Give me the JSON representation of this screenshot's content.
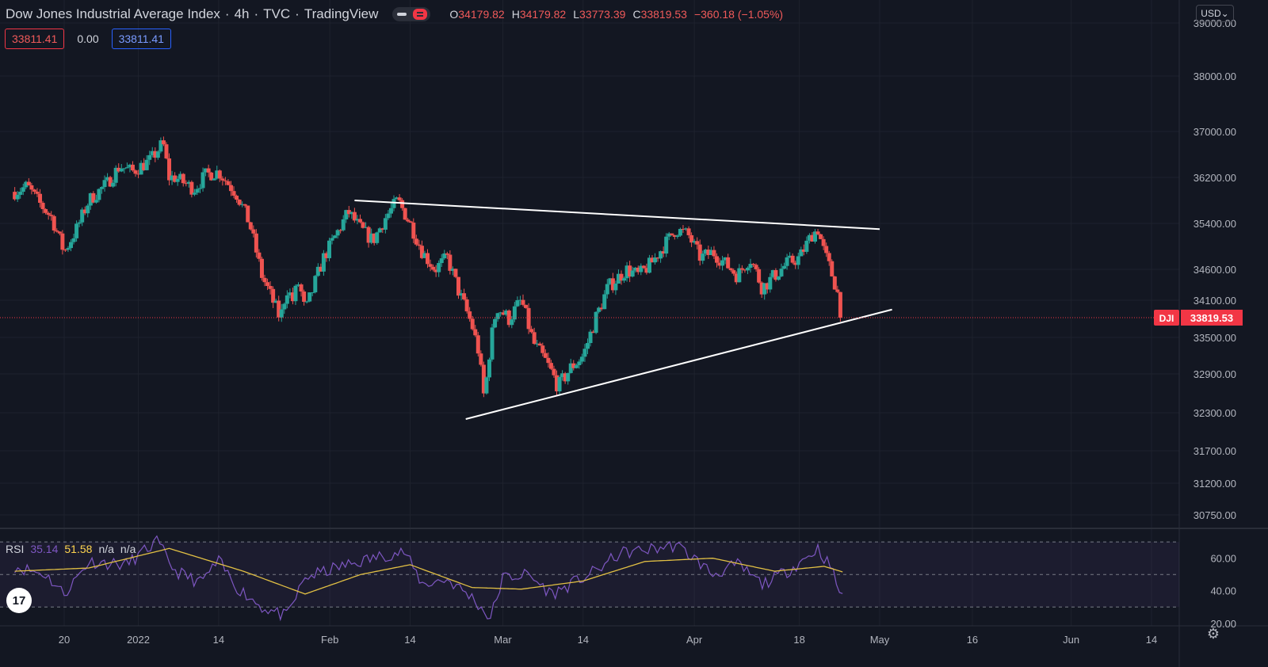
{
  "header": {
    "title": "Dow Jones Industrial Average Index",
    "interval": "4h",
    "exchange": "TVC",
    "source": "TradingView",
    "ohlc": {
      "o_label": "O",
      "o": "34179.82",
      "h_label": "H",
      "h": "34179.82",
      "l_label": "L",
      "l": "33773.39",
      "c_label": "C",
      "c": "33819.53",
      "change": "−360.18 (−1.05%)"
    }
  },
  "bid_ask": {
    "sell": "33811.41",
    "spread": "0.00",
    "buy": "33811.41"
  },
  "currency_label": "USD",
  "rsi": {
    "label": "RSI",
    "value": "35.14",
    "ma_value": "51.58",
    "na1": "n/a",
    "na2": "n/a"
  },
  "logo_text": "17",
  "colors": {
    "background": "#131722",
    "up": "#26a69a",
    "down": "#ef5350",
    "grid": "#1e222d",
    "rsi_line": "#7e57c2",
    "rsi_ma": "#e2c044",
    "trendline": "#ffffff",
    "price_tag": "#f23645"
  },
  "chart_data": {
    "type": "candlestick",
    "symbol": "DJI",
    "last_price": 33819.53,
    "last_price_label": "33819.53",
    "y_ticks": [
      39000,
      38000,
      37000,
      36200,
      35400,
      34600,
      34100,
      33500,
      32900,
      32300,
      31700,
      31200,
      30750
    ],
    "y_tick_labels": [
      "39000.00",
      "38000.00",
      "37000.00",
      "36200.00",
      "35400.00",
      "34600.00",
      "34100.00",
      "33500.00",
      "32900.00",
      "32300.00",
      "31700.00",
      "31200.00",
      "30750.00"
    ],
    "x_tick_labels": [
      "20",
      "2022",
      "14",
      "Feb",
      "14",
      "Mar",
      "14",
      "Apr",
      "18",
      "May",
      "16",
      "Jun",
      "14"
    ],
    "x_tick_dates": [
      "2021-12-20",
      "2022-01-01",
      "2022-01-14",
      "2022-02-01",
      "2022-02-14",
      "2022-03-01",
      "2022-03-14",
      "2022-04-01",
      "2022-04-18",
      "2022-05-01",
      "2022-05-16",
      "2022-06-01",
      "2022-06-14"
    ],
    "close_points": [
      [
        "2021-12-12",
        35950
      ],
      [
        "2021-12-14",
        36050
      ],
      [
        "2021-12-16",
        35750
      ],
      [
        "2021-12-18",
        35500
      ],
      [
        "2021-12-20",
        34900
      ],
      [
        "2021-12-22",
        35300
      ],
      [
        "2021-12-24",
        35800
      ],
      [
        "2021-12-27",
        36100
      ],
      [
        "2021-12-29",
        36400
      ],
      [
        "2021-12-31",
        36300
      ],
      [
        "2022-01-03",
        36500
      ],
      [
        "2022-01-05",
        36800
      ],
      [
        "2022-01-06",
        36200
      ],
      [
        "2022-01-07",
        36200
      ],
      [
        "2022-01-10",
        36000
      ],
      [
        "2022-01-12",
        36250
      ],
      [
        "2022-01-14",
        36300
      ],
      [
        "2022-01-17",
        35900
      ],
      [
        "2022-01-19",
        35400
      ],
      [
        "2022-01-21",
        34500
      ],
      [
        "2022-01-24",
        33800
      ],
      [
        "2022-01-25",
        34300
      ],
      [
        "2022-01-26",
        34100
      ],
      [
        "2022-01-27",
        34400
      ],
      [
        "2022-01-28",
        33900
      ],
      [
        "2022-01-31",
        34800
      ],
      [
        "2022-02-02",
        35200
      ],
      [
        "2022-02-04",
        35600
      ],
      [
        "2022-02-06",
        35300
      ],
      [
        "2022-02-08",
        35100
      ],
      [
        "2022-02-10",
        35500
      ],
      [
        "2022-02-12",
        35800
      ],
      [
        "2022-02-14",
        35400
      ],
      [
        "2022-02-16",
        34900
      ],
      [
        "2022-02-18",
        34600
      ],
      [
        "2022-02-20",
        34800
      ],
      [
        "2022-02-22",
        34200
      ],
      [
        "2022-02-24",
        33700
      ],
      [
        "2022-02-25",
        33300
      ],
      [
        "2022-02-26",
        32500
      ],
      [
        "2022-02-27",
        33400
      ],
      [
        "2022-02-28",
        34000
      ],
      [
        "2022-03-02",
        33800
      ],
      [
        "2022-03-04",
        34100
      ],
      [
        "2022-03-06",
        33400
      ],
      [
        "2022-03-08",
        33100
      ],
      [
        "2022-03-10",
        32700
      ],
      [
        "2022-03-12",
        33000
      ],
      [
        "2022-03-14",
        33200
      ],
      [
        "2022-03-16",
        33800
      ],
      [
        "2022-03-18",
        34300
      ],
      [
        "2022-03-21",
        34600
      ],
      [
        "2022-03-23",
        34500
      ],
      [
        "2022-03-25",
        34700
      ],
      [
        "2022-03-27",
        35000
      ],
      [
        "2022-03-29",
        35300
      ],
      [
        "2022-03-31",
        35200
      ],
      [
        "2022-04-02",
        34800
      ],
      [
        "2022-04-04",
        34900
      ],
      [
        "2022-04-06",
        34700
      ],
      [
        "2022-04-08",
        34500
      ],
      [
        "2022-04-10",
        34800
      ],
      [
        "2022-04-12",
        34300
      ],
      [
        "2022-04-14",
        34500
      ],
      [
        "2022-04-16",
        34700
      ],
      [
        "2022-04-18",
        34800
      ],
      [
        "2022-04-19",
        35000
      ],
      [
        "2022-04-20",
        35200
      ],
      [
        "2022-04-21",
        35300
      ],
      [
        "2022-04-22",
        34900
      ],
      [
        "2022-04-24",
        34300
      ],
      [
        "2022-04-25",
        33819.53
      ]
    ],
    "upper_trendline": [
      [
        "2022-02-05",
        35800
      ],
      [
        "2022-05-01",
        35300
      ]
    ],
    "lower_trendline": [
      [
        "2022-02-23",
        32200
      ],
      [
        "2022-05-03",
        33950
      ]
    ],
    "rsi": {
      "y_ticks": [
        60,
        40,
        20
      ],
      "y_tick_labels": [
        "60.00",
        "40.00",
        "20.00"
      ],
      "band_upper": 70,
      "band_mid": 50,
      "band_lower": 30,
      "rsi_points": [
        [
          "2021-12-12",
          55
        ],
        [
          "2021-12-17",
          50
        ],
        [
          "2021-12-20",
          38
        ],
        [
          "2021-12-24",
          58
        ],
        [
          "2021-12-30",
          56
        ],
        [
          "2022-01-04",
          70
        ],
        [
          "2022-01-07",
          52
        ],
        [
          "2022-01-11",
          45
        ],
        [
          "2022-01-14",
          58
        ],
        [
          "2022-01-17",
          42
        ],
        [
          "2022-01-21",
          30
        ],
        [
          "2022-01-25",
          24
        ],
        [
          "2022-01-28",
          48
        ],
        [
          "2022-02-02",
          54
        ],
        [
          "2022-02-06",
          58
        ],
        [
          "2022-02-10",
          62
        ],
        [
          "2022-02-13",
          64
        ],
        [
          "2022-02-16",
          44
        ],
        [
          "2022-02-20",
          47
        ],
        [
          "2022-02-24",
          36
        ],
        [
          "2022-02-27",
          23
        ],
        [
          "2022-03-01",
          48
        ],
        [
          "2022-03-05",
          50
        ],
        [
          "2022-03-09",
          38
        ],
        [
          "2022-03-13",
          46
        ],
        [
          "2022-03-16",
          52
        ],
        [
          "2022-03-20",
          63
        ],
        [
          "2022-03-24",
          65
        ],
        [
          "2022-03-29",
          68
        ],
        [
          "2022-04-01",
          60
        ],
        [
          "2022-04-04",
          50
        ],
        [
          "2022-04-08",
          56
        ],
        [
          "2022-04-12",
          44
        ],
        [
          "2022-04-16",
          52
        ],
        [
          "2022-04-19",
          60
        ],
        [
          "2022-04-21",
          66
        ],
        [
          "2022-04-23",
          55
        ],
        [
          "2022-04-25",
          35.14
        ]
      ],
      "ma_points": [
        [
          "2021-12-12",
          52
        ],
        [
          "2021-12-24",
          54
        ],
        [
          "2022-01-06",
          66
        ],
        [
          "2022-01-18",
          52
        ],
        [
          "2022-01-28",
          38
        ],
        [
          "2022-02-06",
          50
        ],
        [
          "2022-02-14",
          56
        ],
        [
          "2022-02-24",
          42
        ],
        [
          "2022-03-04",
          41
        ],
        [
          "2022-03-14",
          46
        ],
        [
          "2022-03-24",
          58
        ],
        [
          "2022-04-04",
          60
        ],
        [
          "2022-04-14",
          52
        ],
        [
          "2022-04-22",
          55
        ],
        [
          "2022-04-25",
          51.58
        ]
      ]
    }
  }
}
